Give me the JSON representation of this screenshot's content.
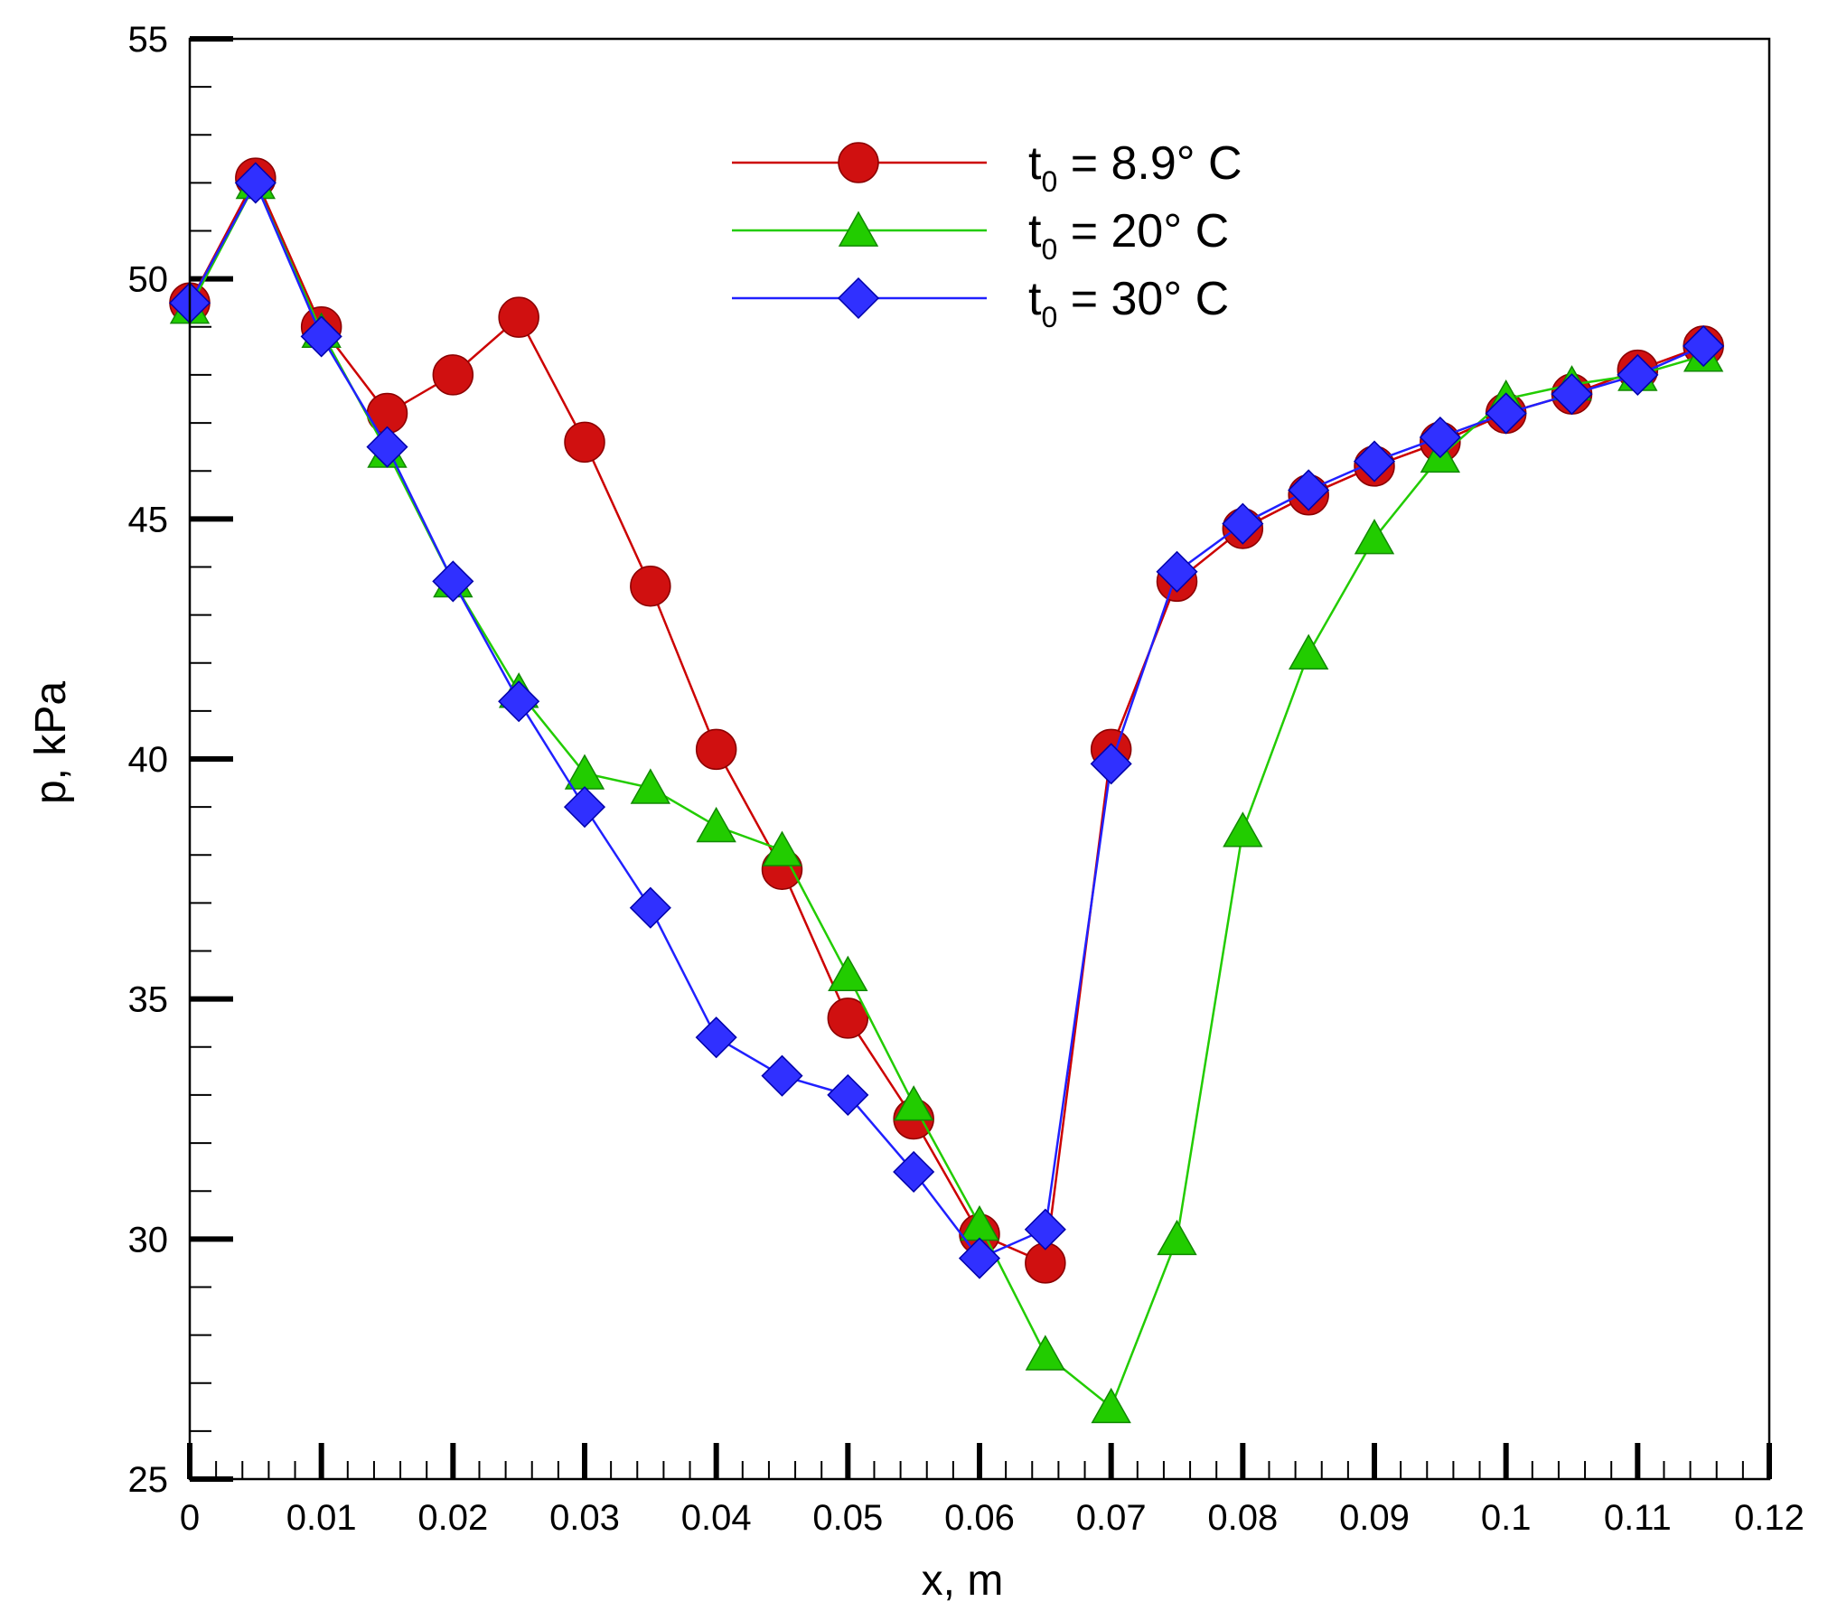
{
  "chart_data": {
    "type": "line",
    "title": "",
    "xlabel": "x, m",
    "ylabel": "p, kPa",
    "xlim": [
      0,
      0.12
    ],
    "ylim": [
      25,
      55
    ],
    "x_ticks": [
      "0",
      "0.01",
      "0.02",
      "0.03",
      "0.04",
      "0.05",
      "0.06",
      "0.07",
      "0.08",
      "0.09",
      "0.1",
      "0.11",
      "0.12"
    ],
    "y_ticks": [
      "25",
      "30",
      "35",
      "40",
      "45",
      "50",
      "55"
    ],
    "legend_position": "top-center",
    "series": [
      {
        "name": "t0 = 8.9°C",
        "legend_main": "t",
        "legend_sub": "0",
        "legend_rest": " = 8.9° C",
        "color": "#d01010",
        "line_color": "#cc0000",
        "marker": "circle",
        "x": [
          0,
          0.005,
          0.01,
          0.015,
          0.02,
          0.025,
          0.03,
          0.035,
          0.04,
          0.045,
          0.05,
          0.055,
          0.06,
          0.065,
          0.07,
          0.075,
          0.08,
          0.085,
          0.09,
          0.095,
          0.1,
          0.105,
          0.11,
          0.115
        ],
        "y": [
          49.5,
          52.1,
          49.0,
          47.2,
          48.0,
          49.2,
          46.6,
          43.6,
          40.2,
          37.7,
          34.6,
          32.5,
          30.1,
          29.5,
          40.2,
          43.7,
          44.8,
          45.5,
          46.1,
          46.6,
          47.2,
          47.6,
          48.1,
          48.6
        ]
      },
      {
        "name": "t0 = 20°C",
        "legend_main": "t",
        "legend_sub": "0",
        "legend_rest": " = 20° C",
        "color": "#22cc00",
        "line_color": "#22cc00",
        "marker": "triangle",
        "x": [
          0,
          0.005,
          0.01,
          0.015,
          0.02,
          0.025,
          0.03,
          0.035,
          0.04,
          0.045,
          0.05,
          0.055,
          0.06,
          0.065,
          0.07,
          0.075,
          0.08,
          0.085,
          0.09,
          0.095,
          0.1,
          0.105,
          0.11,
          0.115
        ],
        "y": [
          49.4,
          52.0,
          48.9,
          46.4,
          43.7,
          41.4,
          39.7,
          39.4,
          38.6,
          38.1,
          35.5,
          32.8,
          30.3,
          27.6,
          26.5,
          30.0,
          38.5,
          42.2,
          44.6,
          46.3,
          47.5,
          47.8,
          48.0,
          48.4
        ]
      },
      {
        "name": "t0 = 30°C",
        "legend_main": "t",
        "legend_sub": "0",
        "legend_rest": " = 30° C",
        "color": "#3030ff",
        "line_color": "#2020ff",
        "marker": "diamond",
        "x": [
          0,
          0.005,
          0.01,
          0.015,
          0.02,
          0.025,
          0.03,
          0.035,
          0.04,
          0.045,
          0.05,
          0.055,
          0.06,
          0.065,
          0.07,
          0.075,
          0.08,
          0.085,
          0.09,
          0.095,
          0.1,
          0.105,
          0.11,
          0.115
        ],
        "y": [
          49.5,
          52.0,
          48.8,
          46.5,
          43.7,
          41.2,
          39.0,
          36.9,
          34.2,
          33.4,
          33.0,
          31.4,
          29.6,
          30.2,
          39.9,
          43.9,
          44.9,
          45.6,
          46.2,
          46.7,
          47.2,
          47.6,
          48.0,
          48.6
        ]
      }
    ]
  }
}
